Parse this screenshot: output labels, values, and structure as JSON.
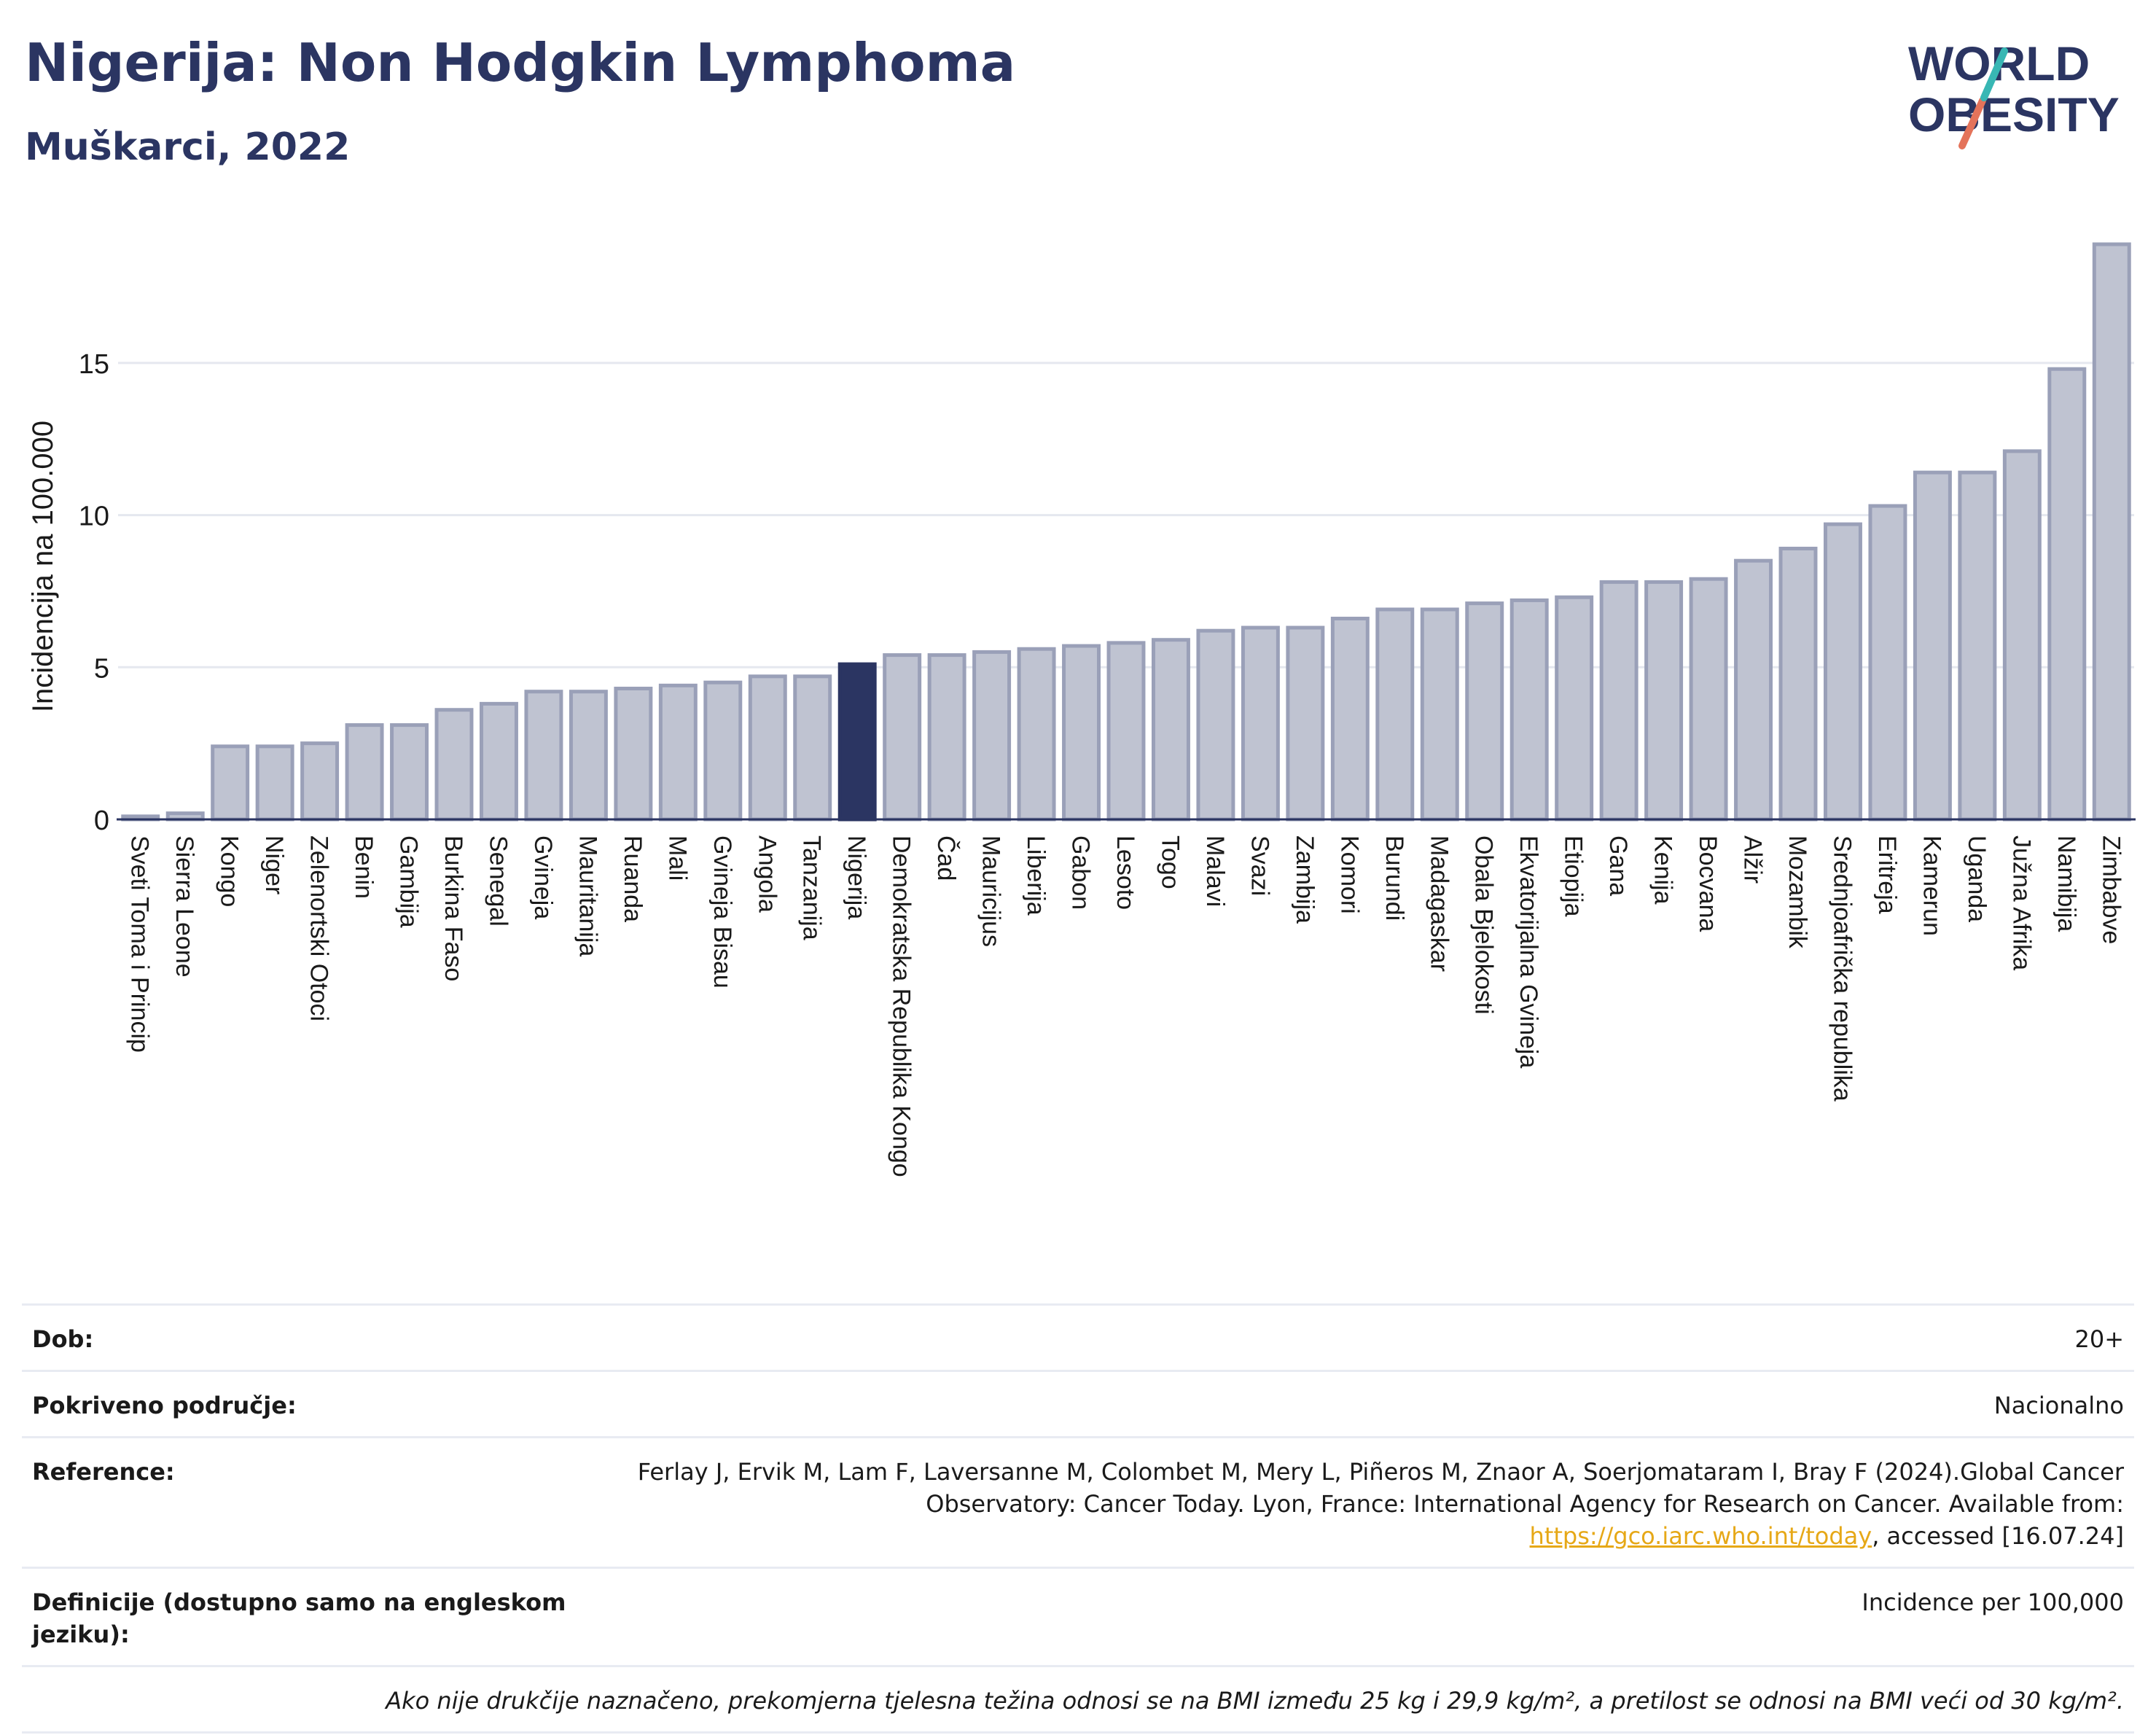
{
  "header": {
    "title": "Nigerija: Non Hodgkin Lymphoma",
    "subtitle": "Muškarci, 2022",
    "logo_line1": "WORLD",
    "logo_line2": "OBESITY"
  },
  "colors": {
    "bar": "#bfc3d1",
    "bar_stroke": "#9aa0b8",
    "highlight": "#2b3562",
    "grid": "#e5e8ef",
    "text": "#2b3562"
  },
  "chart_data": {
    "type": "bar",
    "ylabel": "Incidencija na 100.000",
    "ylim": [
      0,
      19.5
    ],
    "yticks": [
      0,
      5,
      10,
      15
    ],
    "grid": true,
    "highlight": "Nigerija",
    "categories": [
      "Sveti Toma i Princip",
      "Sierra Leone",
      "Kongo",
      "Niger",
      "Zelenortski Otoci",
      "Benin",
      "Gambija",
      "Burkina Faso",
      "Senegal",
      "Gvineja",
      "Mauritanija",
      "Ruanda",
      "Mali",
      "Gvineja Bisau",
      "Angola",
      "Tanzanija",
      "Nigerija",
      "Demokratska Republika Kongo",
      "Čad",
      "Mauricijus",
      "Liberija",
      "Gabon",
      "Lesoto",
      "Togo",
      "Malavi",
      "Svazi",
      "Zambija",
      "Komori",
      "Burundi",
      "Madagaskar",
      "Obala Bjelokosti",
      "Ekvatorijalna Gvineja",
      "Etiopija",
      "Gana",
      "Kenija",
      "Bocvana",
      "Alžir",
      "Mozambik",
      "Srednjoafrička republika",
      "Eritreja",
      "Kamerun",
      "Uganda",
      "Južna Afrika",
      "Namibija",
      "Zimbabve"
    ],
    "values": [
      0.1,
      0.2,
      2.4,
      2.4,
      2.5,
      3.1,
      3.1,
      3.6,
      3.8,
      4.2,
      4.2,
      4.3,
      4.4,
      4.5,
      4.7,
      4.7,
      5.1,
      5.4,
      5.4,
      5.5,
      5.6,
      5.7,
      5.8,
      5.9,
      6.2,
      6.3,
      6.3,
      6.6,
      6.9,
      6.9,
      7.1,
      7.2,
      7.3,
      7.8,
      7.8,
      7.9,
      8.5,
      8.9,
      9.7,
      10.3,
      11.4,
      11.4,
      12.1,
      14.8,
      18.9
    ]
  },
  "info": {
    "rows": [
      {
        "label": "Dob:",
        "value": "20+"
      },
      {
        "label": "Pokriveno područje:",
        "value": "Nacionalno"
      },
      {
        "label": "Reference:",
        "value_pre": "Ferlay J, Ervik M, Lam F, Laversanne M, Colombet M, Mery L, Piñeros M, Znaor A, Soerjomataram I, Bray F (2024).Global Cancer Observatory: Cancer Today. Lyon, France: International Agency for Research on Cancer. Available from: ",
        "link": "https://gco.iarc.who.int/today",
        "value_post": ", accessed [16.07.24]"
      },
      {
        "label": "Definicije (dostupno samo na engleskom jeziku):",
        "value": "Incidence per 100,000"
      }
    ],
    "note": "Ako nije drukčije naznačeno, prekomjerna tjelesna težina odnosi se na BMI između 25 kg i 29,9 kg/m², a pretilost se odnosi na BMI veći od 30 kg/m²."
  }
}
